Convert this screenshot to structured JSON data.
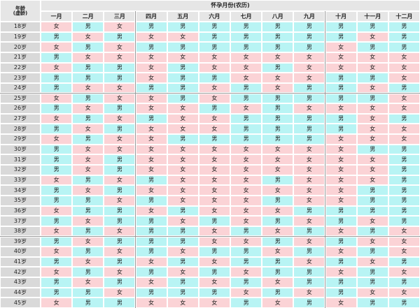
{
  "header": {
    "age_label": [
      "年龄",
      "(虚龄)"
    ],
    "month_title": "怀孕月份(农历)",
    "months": [
      "一月",
      "二月",
      "三月",
      "四月",
      "五月",
      "六月",
      "七月",
      "八月",
      "九月",
      "十月",
      "十一月",
      "十二月"
    ]
  },
  "rows": [
    {
      "age": "18岁",
      "cells": [
        "女",
        "男",
        "女",
        "男",
        "男",
        "男",
        "男",
        "男",
        "男",
        "男",
        "男",
        "男"
      ]
    },
    {
      "age": "19岁",
      "cells": [
        "男",
        "女",
        "男",
        "女",
        "女",
        "男",
        "男",
        "男",
        "男",
        "男",
        "女",
        "男"
      ]
    },
    {
      "age": "20岁",
      "cells": [
        "女",
        "男",
        "女",
        "男",
        "男",
        "男",
        "男",
        "男",
        "男",
        "女",
        "男",
        "男"
      ]
    },
    {
      "age": "21岁",
      "cells": [
        "男",
        "女",
        "女",
        "女",
        "女",
        "女",
        "女",
        "女",
        "女",
        "女",
        "女",
        "女"
      ]
    },
    {
      "age": "22岁",
      "cells": [
        "女",
        "男",
        "男",
        "女",
        "男",
        "女",
        "女",
        "男",
        "女",
        "女",
        "女",
        "女"
      ]
    },
    {
      "age": "23岁",
      "cells": [
        "男",
        "男",
        "男",
        "女",
        "男",
        "男",
        "女",
        "女",
        "女",
        "男",
        "男",
        "女"
      ]
    },
    {
      "age": "24岁",
      "cells": [
        "男",
        "女",
        "女",
        "男",
        "男",
        "女",
        "男",
        "女",
        "男",
        "男",
        "女",
        "男"
      ]
    },
    {
      "age": "25岁",
      "cells": [
        "女",
        "男",
        "女",
        "女",
        "男",
        "女",
        "男",
        "男",
        "男",
        "男",
        "男",
        "女"
      ]
    },
    {
      "age": "26岁",
      "cells": [
        "男",
        "女",
        "男",
        "女",
        "女",
        "男",
        "女",
        "男",
        "女",
        "女",
        "女",
        "女"
      ]
    },
    {
      "age": "27岁",
      "cells": [
        "女",
        "男",
        "女",
        "男",
        "女",
        "女",
        "男",
        "男",
        "男",
        "男",
        "女",
        "男"
      ]
    },
    {
      "age": "28岁",
      "cells": [
        "男",
        "女",
        "男",
        "女",
        "女",
        "女",
        "男",
        "男",
        "男",
        "男",
        "女",
        "女"
      ]
    },
    {
      "age": "29岁",
      "cells": [
        "女",
        "男",
        "女",
        "女",
        "男",
        "男",
        "男",
        "男",
        "男",
        "女",
        "女",
        "女"
      ]
    },
    {
      "age": "30岁",
      "cells": [
        "男",
        "女",
        "女",
        "女",
        "女",
        "女",
        "女",
        "女",
        "女",
        "女",
        "男",
        "男"
      ]
    },
    {
      "age": "31岁",
      "cells": [
        "男",
        "女",
        "男",
        "女",
        "女",
        "女",
        "女",
        "女",
        "女",
        "女",
        "女",
        "男"
      ]
    },
    {
      "age": "32岁",
      "cells": [
        "男",
        "女",
        "男",
        "女",
        "女",
        "女",
        "女",
        "女",
        "女",
        "女",
        "女",
        "男"
      ]
    },
    {
      "age": "33岁",
      "cells": [
        "女",
        "男",
        "女",
        "男",
        "女",
        "女",
        "女",
        "男",
        "女",
        "女",
        "女",
        "男"
      ]
    },
    {
      "age": "34岁",
      "cells": [
        "男",
        "女",
        "男",
        "女",
        "女",
        "女",
        "女",
        "女",
        "女",
        "女",
        "男",
        "男"
      ]
    },
    {
      "age": "35岁",
      "cells": [
        "男",
        "男",
        "女",
        "男",
        "女",
        "女",
        "女",
        "男",
        "女",
        "女",
        "男",
        "男"
      ]
    },
    {
      "age": "36岁",
      "cells": [
        "女",
        "男",
        "男",
        "女",
        "男",
        "女",
        "女",
        "女",
        "男",
        "男",
        "男",
        "男"
      ]
    },
    {
      "age": "37岁",
      "cells": [
        "男",
        "女",
        "男",
        "男",
        "女",
        "男",
        "女",
        "男",
        "女",
        "男",
        "女",
        "男"
      ]
    },
    {
      "age": "38岁",
      "cells": [
        "女",
        "男",
        "女",
        "男",
        "男",
        "女",
        "男",
        "女",
        "男",
        "女",
        "男",
        "女"
      ]
    },
    {
      "age": "39岁",
      "cells": [
        "男",
        "女",
        "男",
        "男",
        "男",
        "女",
        "女",
        "男",
        "女",
        "男",
        "女",
        "女"
      ]
    },
    {
      "age": "40岁",
      "cells": [
        "女",
        "男",
        "女",
        "男",
        "女",
        "男",
        "男",
        "女",
        "男",
        "女",
        "男",
        "女"
      ]
    },
    {
      "age": "41岁",
      "cells": [
        "男",
        "女",
        "男",
        "女",
        "男",
        "女",
        "男",
        "男",
        "女",
        "男",
        "女",
        "男"
      ]
    },
    {
      "age": "42岁",
      "cells": [
        "女",
        "男",
        "女",
        "男",
        "女",
        "男",
        "女",
        "男",
        "男",
        "女",
        "男",
        "女"
      ]
    },
    {
      "age": "43岁",
      "cells": [
        "男",
        "女",
        "男",
        "女",
        "男",
        "女",
        "男",
        "女",
        "男",
        "男",
        "男",
        "男"
      ]
    },
    {
      "age": "44岁",
      "cells": [
        "男",
        "男",
        "女",
        "男",
        "男",
        "男",
        "女",
        "男",
        "女",
        "男",
        "女",
        "女"
      ]
    },
    {
      "age": "45岁",
      "cells": [
        "女",
        "男",
        "男",
        "女",
        "女",
        "女",
        "男",
        "女",
        "男",
        "女",
        "男",
        "男"
      ]
    }
  ]
}
